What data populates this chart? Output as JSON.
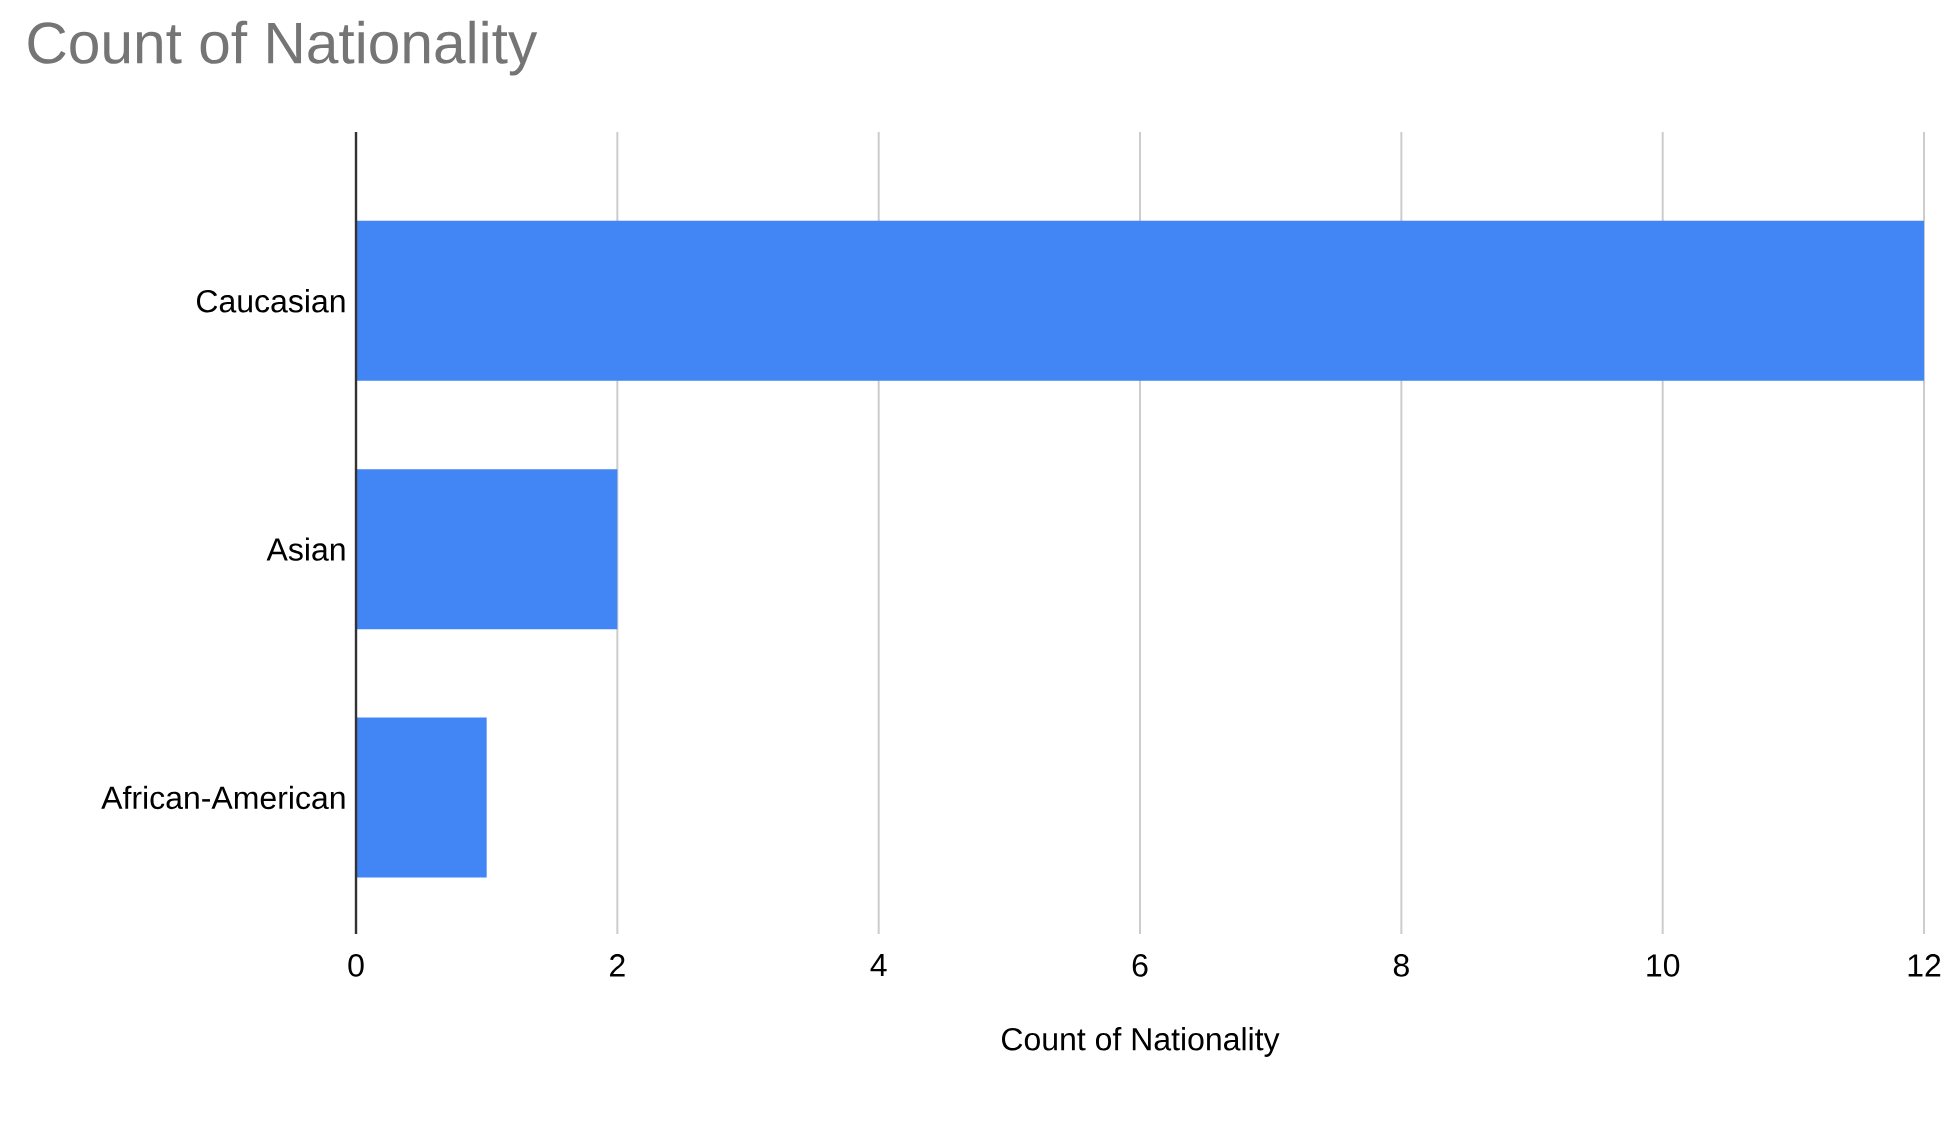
{
  "chart_data": {
    "type": "bar",
    "orientation": "horizontal",
    "title": "Count of Nationality",
    "xlabel": "Count of Nationality",
    "categories": [
      "Caucasian",
      "Asian",
      "African-American"
    ],
    "values": [
      12,
      2,
      1
    ],
    "color": "#4285f4",
    "xlim": [
      0,
      12
    ],
    "xticks": [
      0,
      2,
      4,
      6,
      8,
      10,
      12
    ],
    "grid": "x"
  }
}
